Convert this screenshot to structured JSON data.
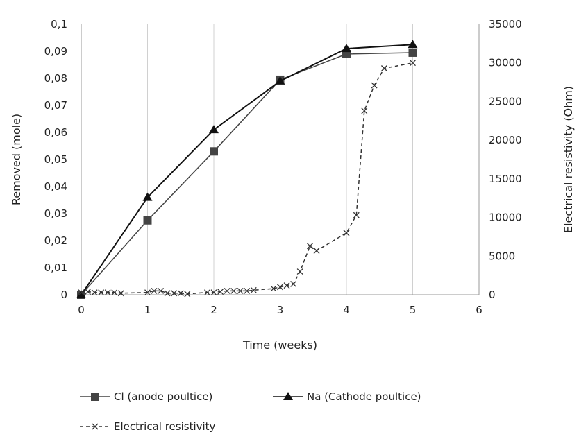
{
  "chart_data": {
    "type": "line",
    "title": "",
    "xlabel": "Time (weeks)",
    "ylabel": "Removed (mole)",
    "y2label": "Electrical resistivity (Ohm)",
    "xlim": [
      0,
      6
    ],
    "ylim": [
      0,
      0.1
    ],
    "y2lim": [
      0,
      35000
    ],
    "x_ticks": [
      "0",
      "1",
      "2",
      "3",
      "4",
      "5",
      "6"
    ],
    "y_ticks": [
      "0",
      "0,01",
      "0,02",
      "0,03",
      "0,04",
      "0,05",
      "0,06",
      "0,07",
      "0,08",
      "0,09",
      "0,1"
    ],
    "y2_ticks": [
      "0",
      "5000",
      "10000",
      "15000",
      "20000",
      "25000",
      "30000",
      "35000"
    ],
    "grid": "vertical",
    "legend_position": "bottom",
    "series": [
      {
        "name": "Cl (anode poultice)",
        "axis": "left",
        "marker": "square",
        "line": "solid",
        "color": "#444444",
        "x": [
          0,
          1,
          2,
          3,
          4,
          5
        ],
        "y": [
          0,
          0.0275,
          0.053,
          0.0795,
          0.089,
          0.0895
        ]
      },
      {
        "name": "Na (Cathode poultice)",
        "axis": "left",
        "marker": "triangle",
        "line": "solid",
        "color": "#111111",
        "x": [
          0,
          1,
          2,
          3,
          4,
          5
        ],
        "y": [
          0,
          0.036,
          0.061,
          0.079,
          0.091,
          0.0925
        ]
      },
      {
        "name": "Electrical resistivity",
        "axis": "right",
        "marker": "x",
        "line": "dashed",
        "color": "#333333",
        "x": [
          0,
          0.1,
          0.2,
          0.3,
          0.4,
          0.5,
          0.6,
          1.0,
          1.1,
          1.2,
          1.3,
          1.4,
          1.5,
          1.6,
          1.9,
          2.0,
          2.1,
          2.2,
          2.3,
          2.4,
          2.5,
          2.6,
          2.9,
          3.0,
          3.1,
          3.2,
          3.3,
          3.45,
          3.55,
          4.0,
          4.15,
          4.27,
          4.42,
          4.57,
          5.0
        ],
        "y": [
          300,
          400,
          300,
          300,
          300,
          300,
          200,
          300,
          500,
          500,
          200,
          200,
          200,
          100,
          300,
          300,
          400,
          500,
          500,
          500,
          500,
          600,
          800,
          1000,
          1200,
          1400,
          3000,
          6300,
          5700,
          8000,
          10300,
          23800,
          27100,
          29300,
          30000
        ]
      }
    ]
  }
}
